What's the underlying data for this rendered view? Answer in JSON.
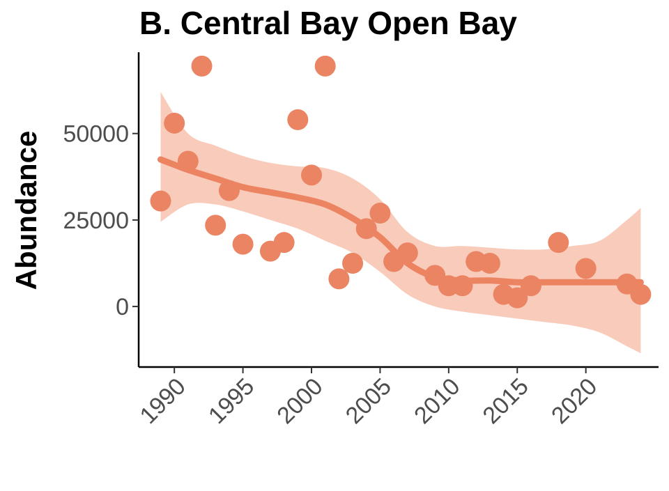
{
  "chart_data": {
    "type": "scatter",
    "title": "B. Central Bay Open Bay",
    "xlabel": "",
    "ylabel": "Abundance",
    "xlim": [
      1987.4,
      2025.3
    ],
    "ylim": [
      -17500,
      73500
    ],
    "x_ticks": [
      1990,
      1995,
      2000,
      2005,
      2010,
      2015,
      2020
    ],
    "y_ticks": [
      0,
      25000,
      50000
    ],
    "grid": false,
    "legend": "none",
    "colors": {
      "points": "#ea8463",
      "smooth_line": "#ec8461",
      "ribbon": "#f8cbbb"
    },
    "points": {
      "x": [
        1989,
        1990,
        1991,
        1992,
        1993,
        1994,
        1995,
        1997,
        1998,
        1999,
        2000,
        2001,
        2002,
        2003,
        2004,
        2005,
        2006,
        2007,
        2009,
        2010,
        2011,
        2012,
        2013,
        2014,
        2015,
        2016,
        2018,
        2020,
        2023,
        2024
      ],
      "y": [
        30500,
        53000,
        42000,
        69500,
        23500,
        33500,
        18000,
        16000,
        18500,
        54000,
        38000,
        69500,
        8000,
        12500,
        22500,
        27000,
        13000,
        15500,
        9000,
        6000,
        6000,
        13000,
        12500,
        3500,
        2500,
        6000,
        18500,
        11000,
        6500,
        3500
      ]
    },
    "smooth": {
      "x": [
        1989,
        1991,
        1993,
        1995,
        1997,
        1999,
        2001,
        2003,
        2005,
        2007,
        2009,
        2011,
        2013,
        2015,
        2017,
        2019,
        2021,
        2023,
        2024
      ],
      "y": [
        42500,
        39500,
        37000,
        34500,
        33000,
        31500,
        29500,
        25500,
        20000,
        12500,
        8500,
        7500,
        7500,
        7000,
        7000,
        7000,
        7000,
        7000,
        7000
      ],
      "lower": [
        24500,
        29500,
        29500,
        27500,
        25000,
        22500,
        19000,
        15500,
        10000,
        3500,
        0,
        -1500,
        -2500,
        -3500,
        -4500,
        -5500,
        -7500,
        -11500,
        -13500
      ],
      "upper": [
        62000,
        50000,
        46500,
        43500,
        41500,
        40500,
        40000,
        37000,
        31000,
        21500,
        17500,
        17500,
        17000,
        16500,
        16500,
        17500,
        19000,
        25000,
        28500
      ]
    }
  }
}
